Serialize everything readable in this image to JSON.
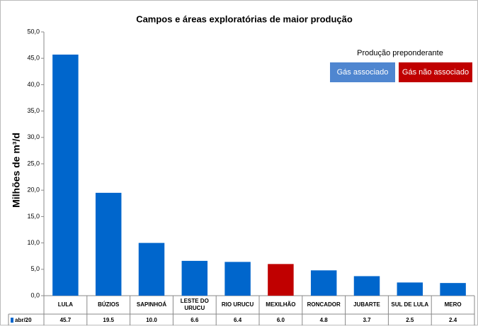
{
  "chart_data": {
    "type": "bar",
    "title": "Campos e áreas exploratórias de maior produção",
    "y_label": "Milhões de m³/d",
    "categories": [
      "LULA",
      "BÚZIOS",
      "SAPINHOÁ",
      "LESTE DO URUCU",
      "RIO URUCU",
      "MEXILHÃO",
      "RONCADOR",
      "JUBARTE",
      "SUL DE LULA",
      "MERO"
    ],
    "series": [
      {
        "name": "abr/20",
        "color": "#0066cc",
        "point_colors": [
          "#0066cc",
          "#0066cc",
          "#0066cc",
          "#0066cc",
          "#0066cc",
          "#c00000",
          "#0066cc",
          "#0066cc",
          "#0066cc",
          "#0066cc"
        ],
        "values": [
          45.7,
          19.5,
          10.0,
          6.6,
          6.4,
          6.0,
          4.8,
          3.7,
          2.5,
          2.4
        ],
        "value_labels": [
          "45.7",
          "19.5",
          "10.0",
          "6.6",
          "6.4",
          "6.0",
          "4.8",
          "3.7",
          "2.5",
          "2.4"
        ]
      }
    ],
    "ylim": [
      0,
      50
    ],
    "yticks": [
      {
        "value": 0,
        "label": "0,0"
      },
      {
        "value": 5,
        "label": "5,0"
      },
      {
        "value": 10,
        "label": "10,0"
      },
      {
        "value": 15,
        "label": "15,0"
      },
      {
        "value": 20,
        "label": "20,0"
      },
      {
        "value": 25,
        "label": "25,0"
      },
      {
        "value": 30,
        "label": "30,0"
      },
      {
        "value": 35,
        "label": "35,0"
      },
      {
        "value": 40,
        "label": "40,0"
      },
      {
        "value": 45,
        "label": "45,0"
      },
      {
        "value": 50,
        "label": "50,0"
      }
    ],
    "legend_title": "Produção preponderante",
    "legend_items": [
      {
        "label": "Gás associado",
        "color": "#4f86d0"
      },
      {
        "label": "Gás não associado",
        "color": "#c00000"
      }
    ]
  }
}
